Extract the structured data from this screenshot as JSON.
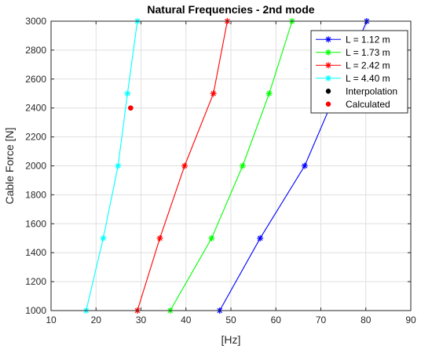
{
  "chart_data": {
    "type": "line",
    "title": "Natural Frequencies - 2nd mode",
    "xlabel": "[Hz]",
    "ylabel": "Cable Force [N]",
    "xlim": [
      10,
      90
    ],
    "ylim": [
      1000,
      3000
    ],
    "xticks": [
      10,
      20,
      30,
      40,
      50,
      60,
      70,
      80,
      90
    ],
    "yticks": [
      1000,
      1200,
      1400,
      1600,
      1800,
      2000,
      2200,
      2400,
      2600,
      2800,
      3000
    ],
    "grid": true,
    "legend_position": "top-right",
    "series": [
      {
        "name": "L = 1.12 m",
        "color": "#0000ff",
        "marker": "asterisk",
        "line": true,
        "points": [
          [
            47.5,
            1000
          ],
          [
            56.5,
            1500
          ],
          [
            66.4,
            2000
          ],
          [
            80.2,
            3000
          ]
        ]
      },
      {
        "name": "L = 1.73 m",
        "color": "#00ff00",
        "marker": "asterisk",
        "line": true,
        "points": [
          [
            36.5,
            1000
          ],
          [
            45.7,
            1500
          ],
          [
            52.6,
            2000
          ],
          [
            58.5,
            2500
          ],
          [
            63.6,
            3000
          ]
        ]
      },
      {
        "name": "L = 2.42 m",
        "color": "#ff0000",
        "marker": "asterisk",
        "line": true,
        "points": [
          [
            29.2,
            1000
          ],
          [
            34.2,
            1500
          ],
          [
            39.7,
            2000
          ],
          [
            46.1,
            2500
          ],
          [
            49.2,
            3000
          ]
        ]
      },
      {
        "name": "L = 4.40 m",
        "color": "#00ffff",
        "marker": "asterisk",
        "line": true,
        "points": [
          [
            17.8,
            1000
          ],
          [
            21.6,
            1500
          ],
          [
            24.9,
            2000
          ],
          [
            27.0,
            2500
          ],
          [
            29.2,
            3000
          ]
        ]
      },
      {
        "name": "Interpolation",
        "color": "#000000",
        "marker": "dot",
        "line": false,
        "points": [
          [
            27.7,
            2400
          ]
        ]
      },
      {
        "name": "Calculated",
        "color": "#ff0000",
        "marker": "dot",
        "line": false,
        "points": [
          [
            27.7,
            2400
          ]
        ]
      }
    ]
  }
}
